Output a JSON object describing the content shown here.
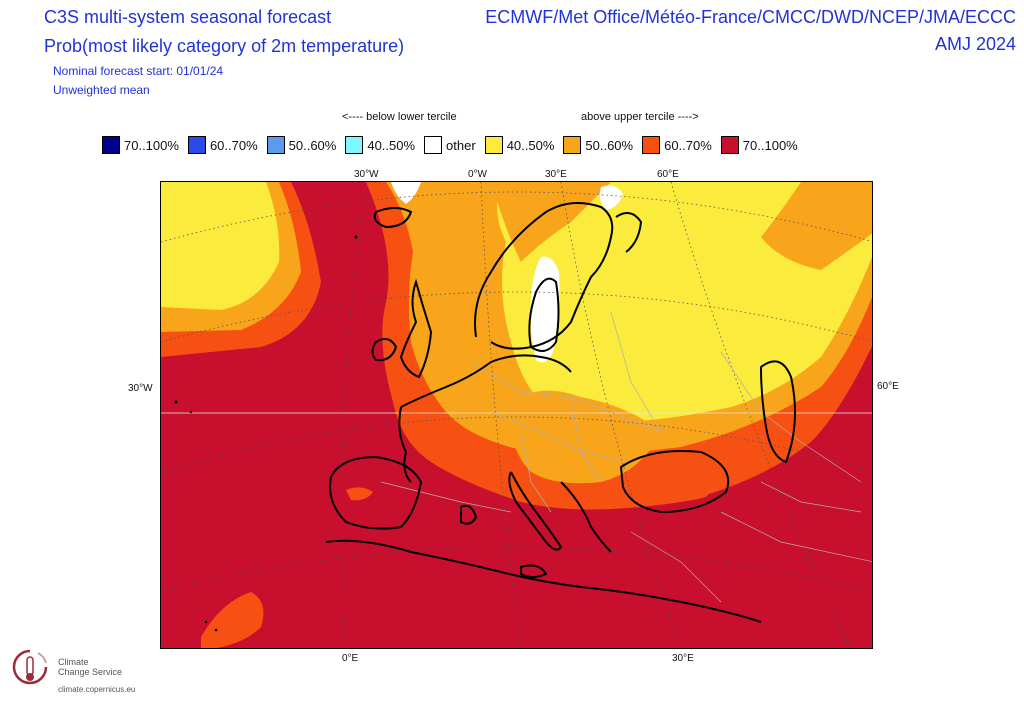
{
  "header": {
    "title_line1": "C3S multi-system seasonal forecast",
    "title_line2": "Prob(most likely category of 2m temperature)",
    "systems": "ECMWF/Met Office/Météo-France/CMCC/DWD/NCEP/JMA/ECCC",
    "season": "AMJ 2024",
    "forecast_start": "Nominal forecast start: 01/01/24",
    "mean_type": "Unweighted mean"
  },
  "legend": {
    "below_label": "<---- below lower tercile",
    "above_label": "above upper tercile ---->",
    "items": [
      {
        "label": "70..100%",
        "color": "#00008b"
      },
      {
        "label": "60..70%",
        "color": "#2b4be8"
      },
      {
        "label": "50..60%",
        "color": "#5c9aef"
      },
      {
        "label": "40..50%",
        "color": "#7ef8f8"
      },
      {
        "label": "other",
        "color": "#ffffff"
      },
      {
        "label": "40..50%",
        "color": "#fbeb3c"
      },
      {
        "label": "50..60%",
        "color": "#f8a51c"
      },
      {
        "label": "60..70%",
        "color": "#f65012"
      },
      {
        "label": "70..100%",
        "color": "#c80f2e"
      }
    ]
  },
  "map": {
    "graticule_labels": {
      "top": [
        "30°W",
        "0°W",
        "30°E",
        "60°E"
      ],
      "left": [
        "30°W"
      ],
      "right": [
        "60°E"
      ],
      "bottom": [
        "0°E",
        "30°E"
      ]
    }
  },
  "logo": {
    "line1": "Climate",
    "line2": "Change Service",
    "url": "climate.copernicus.eu"
  }
}
